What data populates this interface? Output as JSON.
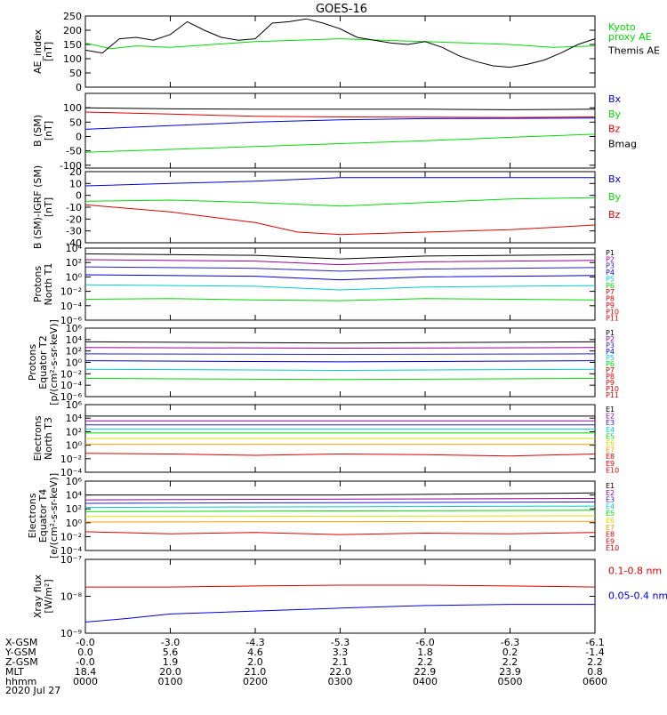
{
  "title": "GOES-16",
  "colors": {
    "black": "#000000",
    "green": "#00dd00",
    "blue": "#0000dd",
    "red": "#dd0000",
    "purple": "#990099",
    "navy": "#2222cc",
    "cyan": "#00cccc",
    "yellow": "#dddd00",
    "orange": "#ff9900",
    "olive": "#aaaa00",
    "lightgreen": "#55dd55"
  },
  "chart_data": [
    {
      "id": "ae",
      "type": "line",
      "ylabel": "AE_index\n[nT]",
      "ylim": [
        0,
        250
      ],
      "yticks": [
        "0",
        "50",
        "100",
        "150",
        "200",
        "250"
      ],
      "series": [
        {
          "name": "Kyoto proxy AE",
          "label_lines": [
            "Kyoto",
            "proxy AE"
          ],
          "color": "#00dd00",
          "x": [
            0,
            0.3,
            0.6,
            1.0,
            1.5,
            2.0,
            2.5,
            3.0,
            3.5,
            4.0,
            4.5,
            5.0,
            5.5,
            6.0
          ],
          "values": [
            155,
            135,
            145,
            140,
            150,
            160,
            165,
            170,
            165,
            160,
            155,
            150,
            140,
            145
          ]
        },
        {
          "name": "Themis AE",
          "label_lines": [
            "Themis AE"
          ],
          "color": "#000000",
          "x": [
            0,
            0.2,
            0.4,
            0.6,
            0.8,
            1.0,
            1.2,
            1.4,
            1.6,
            1.8,
            2.0,
            2.2,
            2.4,
            2.6,
            2.8,
            3.0,
            3.2,
            3.4,
            3.6,
            3.8,
            4.0,
            4.2,
            4.4,
            4.6,
            4.8,
            5.0,
            5.2,
            5.4,
            5.6,
            5.8,
            6.0
          ],
          "values": [
            130,
            120,
            170,
            175,
            165,
            185,
            230,
            200,
            175,
            165,
            170,
            225,
            230,
            240,
            225,
            205,
            175,
            165,
            155,
            150,
            160,
            140,
            110,
            90,
            75,
            70,
            80,
            95,
            120,
            150,
            170
          ]
        }
      ]
    },
    {
      "id": "b",
      "type": "line",
      "ylabel": "B (SM)\n[nT]",
      "ylim": [
        -110,
        150
      ],
      "yticks": [
        "-100",
        "-50",
        "0",
        "50",
        "100"
      ],
      "series": [
        {
          "name": "Bx",
          "color": "#0000dd",
          "x": [
            0,
            1,
            2,
            3,
            4,
            5,
            6
          ],
          "values": [
            25,
            38,
            50,
            58,
            62,
            63,
            64
          ]
        },
        {
          "name": "By",
          "color": "#00dd00",
          "x": [
            0,
            1,
            2,
            3,
            4,
            5,
            6
          ],
          "values": [
            -55,
            -45,
            -35,
            -25,
            -15,
            -3,
            8
          ]
        },
        {
          "name": "Bz",
          "color": "#dd0000",
          "x": [
            0,
            1,
            2,
            3,
            4,
            5,
            6
          ],
          "values": [
            85,
            78,
            70,
            68,
            67,
            66,
            68
          ]
        },
        {
          "name": "Bmag",
          "color": "#000000",
          "x": [
            0,
            1,
            2,
            3,
            4,
            5,
            6
          ],
          "values": [
            100,
            96,
            95,
            95,
            95,
            93,
            95
          ]
        }
      ]
    },
    {
      "id": "bigrf",
      "type": "line",
      "ylabel": "B (SM)-IGRF (SM)\n[nT]",
      "ylim": [
        -40,
        20
      ],
      "yticks": [
        "-40",
        "-30",
        "-20",
        "-10",
        "0",
        "10",
        "20"
      ],
      "series": [
        {
          "name": "Bx",
          "color": "#0000dd",
          "x": [
            0,
            1,
            2,
            3,
            4,
            5,
            6
          ],
          "values": [
            8,
            10,
            12,
            15,
            15,
            15,
            15
          ]
        },
        {
          "name": "By",
          "color": "#00dd00",
          "x": [
            0,
            1,
            2,
            3,
            4,
            5,
            6
          ],
          "values": [
            -5,
            -4,
            -6,
            -9,
            -6,
            -3,
            -2
          ]
        },
        {
          "name": "Bz",
          "color": "#dd0000",
          "x": [
            0,
            1,
            2,
            2.5,
            3,
            4,
            5,
            6
          ],
          "values": [
            -8,
            -14,
            -23,
            -31,
            -33,
            -31,
            -29,
            -25
          ]
        }
      ]
    },
    {
      "id": "pn",
      "type": "line",
      "scale": "log",
      "ylabel": "Protons\nNorth T1",
      "ylim_exp": [
        -6,
        4
      ],
      "yticks": [
        "10⁴",
        "10²",
        "10⁰",
        "10⁻²",
        "10⁻⁴",
        "10⁻⁶"
      ],
      "legend": [
        "P1",
        "P2",
        "P3",
        "P4",
        "P5",
        "P6",
        "P7",
        "P8",
        "P9",
        "P10",
        "P11"
      ],
      "series": [
        {
          "name": "P1",
          "color": "#000000",
          "x": [
            0,
            2,
            3,
            4,
            6
          ],
          "log_values": [
            3.2,
            3.0,
            2.5,
            2.9,
            3.1
          ]
        },
        {
          "name": "P2",
          "color": "#990099",
          "x": [
            0,
            2,
            3,
            4,
            6
          ],
          "log_values": [
            2.4,
            2.2,
            1.7,
            2.1,
            2.3
          ]
        },
        {
          "name": "P3",
          "color": "#2222cc",
          "x": [
            0,
            2,
            3,
            4,
            6
          ],
          "log_values": [
            1.4,
            1.2,
            0.8,
            1.1,
            1.3
          ]
        },
        {
          "name": "P4",
          "color": "#0000dd",
          "x": [
            0,
            2,
            3,
            4,
            6
          ],
          "log_values": [
            0.3,
            0.1,
            -0.4,
            0.0,
            0.2
          ]
        },
        {
          "name": "P5",
          "color": "#00cccc",
          "x": [
            0,
            2,
            3,
            4,
            6
          ],
          "log_values": [
            -1.1,
            -1.3,
            -1.8,
            -1.4,
            -1.2
          ]
        },
        {
          "name": "P6",
          "color": "#00dd00",
          "x": [
            0,
            1,
            2,
            3,
            4,
            5,
            6
          ],
          "log_values": [
            -3.1,
            -3.0,
            -3.2,
            -3.3,
            -3.0,
            -3.1,
            -3.2
          ]
        }
      ]
    },
    {
      "id": "pe",
      "type": "line",
      "scale": "log",
      "ylabel": "Protons\nEquator T2\n[p/(cm²-s-sr-keV)]",
      "ylim_exp": [
        -6,
        6
      ],
      "yticks": [
        "10⁶",
        "10⁴",
        "10²",
        "10⁰",
        "10⁻²",
        "10⁻⁴",
        "10⁻⁶"
      ],
      "legend": [
        "P1",
        "P2",
        "P3",
        "P4",
        "P5",
        "P6",
        "P7",
        "P8",
        "P9",
        "P10",
        "P11"
      ],
      "series": [
        {
          "name": "P1",
          "color": "#000000",
          "x": [
            0,
            3,
            6
          ],
          "log_values": [
            3.6,
            3.4,
            3.6
          ]
        },
        {
          "name": "P2",
          "color": "#990099",
          "x": [
            0,
            3,
            6
          ],
          "log_values": [
            2.6,
            2.5,
            2.6
          ]
        },
        {
          "name": "P3",
          "color": "#2222cc",
          "x": [
            0,
            3,
            6
          ],
          "log_values": [
            1.5,
            1.4,
            1.5
          ]
        },
        {
          "name": "P4",
          "color": "#0000dd",
          "x": [
            0,
            3,
            6
          ],
          "log_values": [
            0.3,
            0.1,
            0.3
          ]
        },
        {
          "name": "P5",
          "color": "#00cccc",
          "x": [
            0,
            3,
            6
          ],
          "log_values": [
            -1.2,
            -1.4,
            -1.2
          ]
        },
        {
          "name": "P6",
          "color": "#00dd00",
          "x": [
            0,
            3,
            6
          ],
          "log_values": [
            -2.8,
            -3.0,
            -2.8
          ]
        }
      ]
    },
    {
      "id": "en",
      "type": "line",
      "scale": "log",
      "ylabel": "Electrons\nNorth T3",
      "ylim_exp": [
        -4,
        6
      ],
      "yticks": [
        "10⁶",
        "10⁴",
        "10²",
        "10⁰",
        "10⁻²",
        "10⁻⁴"
      ],
      "legend": [
        "E1",
        "E2",
        "E3",
        "E4",
        "E5",
        "E6",
        "E7",
        "E8",
        "E9",
        "E10"
      ],
      "series": [
        {
          "name": "E1",
          "color": "#000000",
          "x": [
            0,
            6
          ],
          "log_values": [
            4.3,
            4.3
          ]
        },
        {
          "name": "E2",
          "color": "#990099",
          "x": [
            0,
            6
          ],
          "log_values": [
            3.6,
            3.6
          ]
        },
        {
          "name": "E3",
          "color": "#2222cc",
          "x": [
            0,
            6
          ],
          "log_values": [
            3.0,
            3.0
          ]
        },
        {
          "name": "E4",
          "color": "#00cccc",
          "x": [
            0,
            6
          ],
          "log_values": [
            2.4,
            2.4
          ]
        },
        {
          "name": "E5",
          "color": "#00dd00",
          "x": [
            0,
            6
          ],
          "log_values": [
            1.8,
            1.8
          ]
        },
        {
          "name": "E6",
          "color": "#dddd00",
          "x": [
            0,
            6
          ],
          "log_values": [
            1.0,
            1.0
          ]
        },
        {
          "name": "E7",
          "color": "#ff9900",
          "x": [
            0,
            6
          ],
          "log_values": [
            0.1,
            0.1
          ]
        },
        {
          "name": "E8",
          "color": "#dd0000",
          "x": [
            0,
            1,
            2,
            3,
            4,
            5,
            6
          ],
          "log_values": [
            -1.2,
            -1.3,
            -1.5,
            -1.3,
            -1.4,
            -1.6,
            -1.3
          ]
        }
      ]
    },
    {
      "id": "ee",
      "type": "line",
      "scale": "log",
      "ylabel": "Electrons\nEquator T4\n[e/(cm²-s-sr-keV)]",
      "ylim_exp": [
        -4,
        6
      ],
      "yticks": [
        "10⁶",
        "10⁴",
        "10²",
        "10⁰",
        "10⁻²",
        "10⁻⁴"
      ],
      "legend": [
        "E1",
        "E2",
        "E3",
        "E4",
        "E5",
        "E6",
        "E7",
        "E8",
        "E9",
        "E10"
      ],
      "series": [
        {
          "name": "E1",
          "color": "#000000",
          "x": [
            0,
            3,
            6
          ],
          "log_values": [
            4.0,
            4.0,
            4.3
          ]
        },
        {
          "name": "E2",
          "color": "#990099",
          "x": [
            0,
            6
          ],
          "log_values": [
            3.3,
            3.5
          ]
        },
        {
          "name": "E3",
          "color": "#2222cc",
          "x": [
            0,
            6
          ],
          "log_values": [
            2.8,
            3.0
          ]
        },
        {
          "name": "E4",
          "color": "#00cccc",
          "x": [
            0,
            6
          ],
          "log_values": [
            2.2,
            2.4
          ]
        },
        {
          "name": "E5",
          "color": "#00dd00",
          "x": [
            0,
            6
          ],
          "log_values": [
            1.6,
            1.8
          ]
        },
        {
          "name": "E6",
          "color": "#dddd00",
          "x": [
            0,
            6
          ],
          "log_values": [
            0.9,
            1.0
          ]
        },
        {
          "name": "E7",
          "color": "#ff9900",
          "x": [
            0,
            6
          ],
          "log_values": [
            0.1,
            0.2
          ]
        },
        {
          "name": "E8",
          "color": "#dd0000",
          "x": [
            0,
            1,
            2,
            3,
            4,
            5,
            6
          ],
          "log_values": [
            -1.3,
            -1.6,
            -1.4,
            -1.7,
            -1.5,
            -1.6,
            -1.4
          ]
        }
      ]
    },
    {
      "id": "xray",
      "type": "line",
      "scale": "log",
      "ylabel": "Xray flux\n[W/m²]",
      "ylim_exp": [
        -9,
        -7
      ],
      "yticks": [
        "10⁻⁷",
        "10⁻⁸",
        "10⁻⁹"
      ],
      "series": [
        {
          "name": "0.1-0.8 nm",
          "color": "#dd0000",
          "x": [
            0,
            1,
            2,
            3,
            4,
            5,
            6
          ],
          "log_values": [
            -7.75,
            -7.75,
            -7.72,
            -7.7,
            -7.7,
            -7.72,
            -7.75
          ]
        },
        {
          "name": "0.05-0.4 nm",
          "color": "#0000dd",
          "x": [
            0,
            0.5,
            1,
            2,
            3,
            4,
            5,
            6
          ],
          "log_values": [
            -8.7,
            -8.6,
            -8.48,
            -8.4,
            -8.32,
            -8.25,
            -8.22,
            -8.22
          ]
        }
      ]
    }
  ],
  "xaxis": {
    "rows": [
      "X-GSM",
      "Y-GSM",
      "Z-GSM",
      "MLT",
      "hhmm"
    ],
    "values": [
      [
        "-0.0",
        "-3.0",
        "-4.3",
        "-5.3",
        "-6.0",
        "-6.3",
        "-6.1"
      ],
      [
        "0.0",
        "5.6",
        "4.6",
        "3.3",
        "1.8",
        "0.2",
        "-1.4"
      ],
      [
        "-0.0",
        "1.9",
        "2.0",
        "2.1",
        "2.2",
        "2.2",
        "2.2"
      ],
      [
        "18.4",
        "20.0",
        "21.0",
        "22.0",
        "22.9",
        "23.9",
        "0.8"
      ],
      [
        "0000",
        "0100",
        "0200",
        "0300",
        "0400",
        "0500",
        "0600"
      ]
    ],
    "date": "2020 Jul 27",
    "xlim": [
      0,
      6
    ]
  }
}
